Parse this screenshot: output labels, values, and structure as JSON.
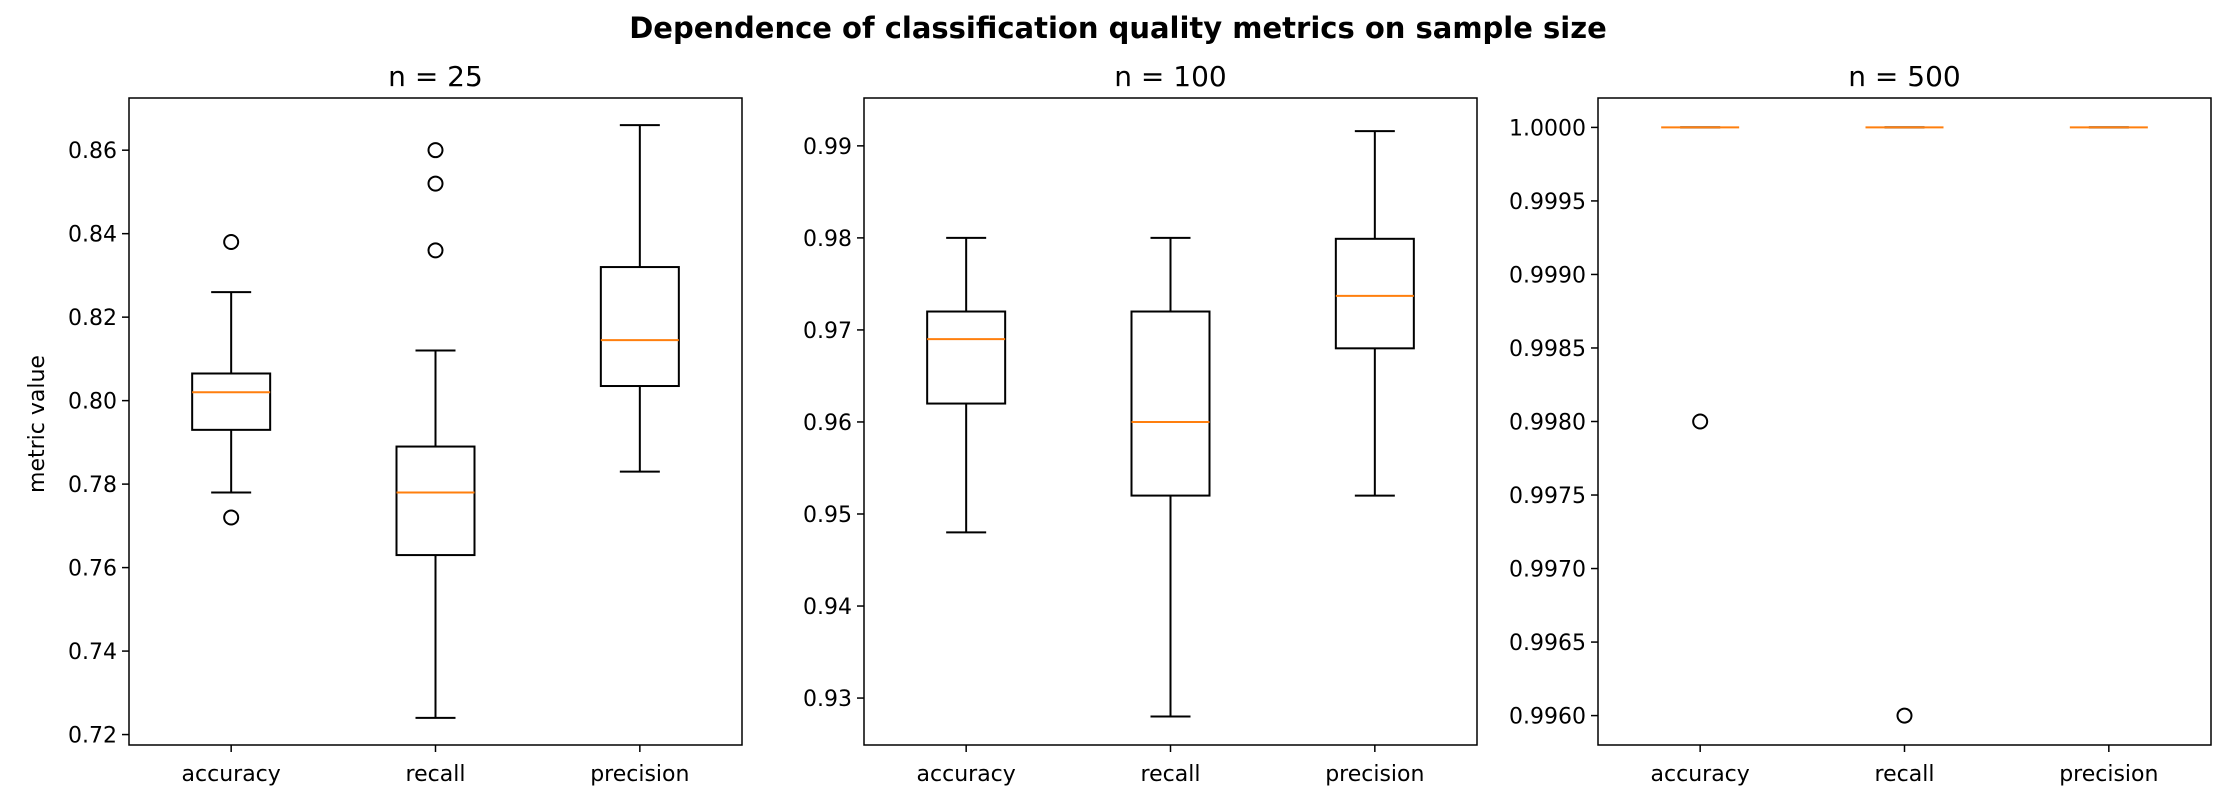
{
  "chart_data": {
    "type": "boxplot",
    "suptitle": "Dependence of classification quality metrics on sample size",
    "ylabel": "metric value",
    "categories": [
      "accuracy",
      "recall",
      "precision"
    ],
    "median_color": "#ff7f0e",
    "panels": [
      {
        "title": "n = 25",
        "ylim": [
          0.7175,
          0.8725
        ],
        "yticks": [
          0.72,
          0.74,
          0.76,
          0.78,
          0.8,
          0.82,
          0.84,
          0.86
        ],
        "ytick_labels": [
          "0.72",
          "0.74",
          "0.76",
          "0.78",
          "0.80",
          "0.82",
          "0.84",
          "0.86"
        ],
        "boxes": [
          {
            "label": "accuracy",
            "whislo": 0.778,
            "q1": 0.793,
            "med": 0.802,
            "q3": 0.8065,
            "whishi": 0.826,
            "fliers": [
              0.772,
              0.838
            ]
          },
          {
            "label": "recall",
            "whislo": 0.724,
            "q1": 0.763,
            "med": 0.778,
            "q3": 0.789,
            "whishi": 0.812,
            "fliers": [
              0.836,
              0.852,
              0.86
            ]
          },
          {
            "label": "precision",
            "whislo": 0.783,
            "q1": 0.8035,
            "med": 0.8145,
            "q3": 0.832,
            "whishi": 0.866,
            "fliers": []
          }
        ]
      },
      {
        "title": "n = 100",
        "ylim": [
          0.9249,
          0.9952
        ],
        "yticks": [
          0.93,
          0.94,
          0.95,
          0.96,
          0.97,
          0.98,
          0.99
        ],
        "ytick_labels": [
          "0.93",
          "0.94",
          "0.95",
          "0.96",
          "0.97",
          "0.98",
          "0.99"
        ],
        "boxes": [
          {
            "label": "accuracy",
            "whislo": 0.948,
            "q1": 0.962,
            "med": 0.969,
            "q3": 0.972,
            "whishi": 0.98,
            "fliers": []
          },
          {
            "label": "recall",
            "whislo": 0.928,
            "q1": 0.952,
            "med": 0.96,
            "q3": 0.972,
            "whishi": 0.98,
            "fliers": []
          },
          {
            "label": "precision",
            "whislo": 0.952,
            "q1": 0.968,
            "med": 0.9737,
            "q3": 0.9799,
            "whishi": 0.9916,
            "fliers": []
          }
        ]
      },
      {
        "title": "n = 500",
        "ylim": [
          0.9958,
          1.0002
        ],
        "yticks": [
          0.996,
          0.9965,
          0.997,
          0.9975,
          0.998,
          0.9985,
          0.999,
          0.9995,
          1.0
        ],
        "ytick_labels": [
          "0.9960",
          "0.9965",
          "0.9970",
          "0.9975",
          "0.9980",
          "0.9985",
          "0.9990",
          "0.9995",
          "1.0000"
        ],
        "boxes": [
          {
            "label": "accuracy",
            "whislo": 1.0,
            "q1": 1.0,
            "med": 1.0,
            "q3": 1.0,
            "whishi": 1.0,
            "fliers": [
              0.998
            ]
          },
          {
            "label": "recall",
            "whislo": 1.0,
            "q1": 1.0,
            "med": 1.0,
            "q3": 1.0,
            "whishi": 1.0,
            "fliers": [
              0.996
            ]
          },
          {
            "label": "precision",
            "whislo": 1.0,
            "q1": 1.0,
            "med": 1.0,
            "q3": 1.0,
            "whishi": 1.0,
            "fliers": []
          }
        ]
      }
    ]
  }
}
